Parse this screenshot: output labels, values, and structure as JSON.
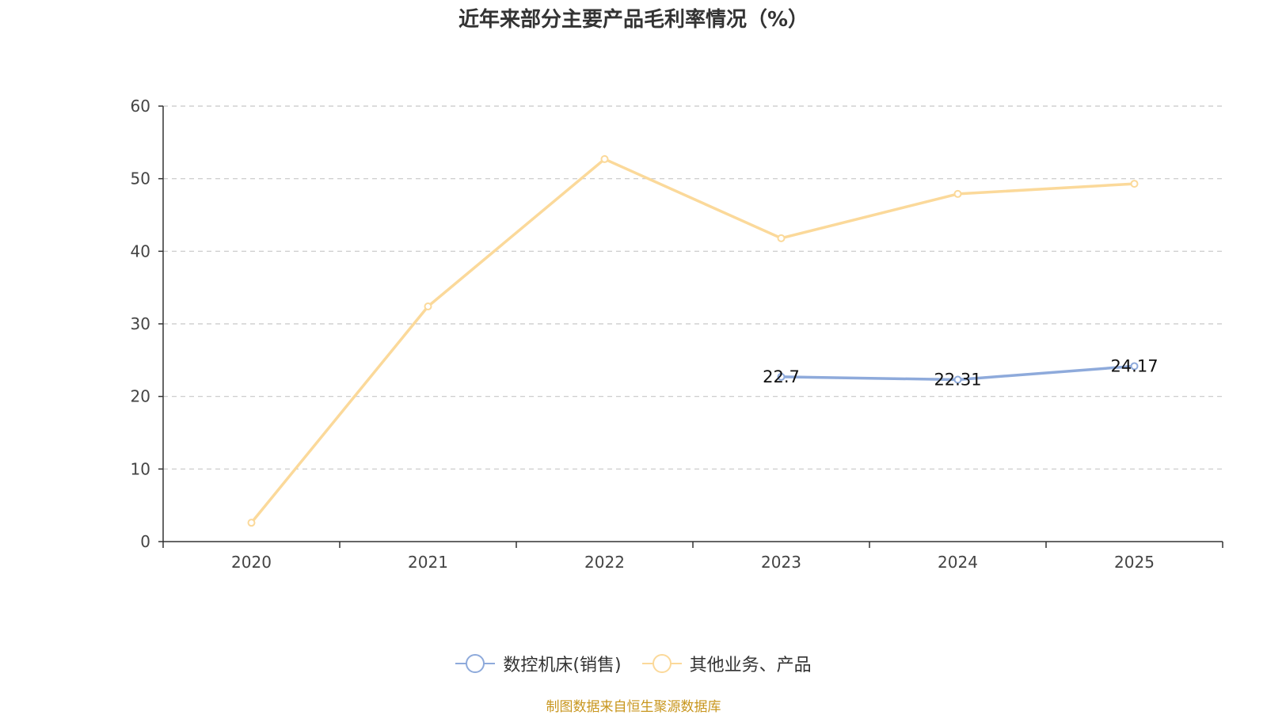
{
  "chart_data": {
    "type": "line",
    "title": "近年来部分主要产品毛利率情况（%）",
    "categories": [
      "2020",
      "2021",
      "2022",
      "2023",
      "2024",
      "2025"
    ],
    "ylim": [
      0,
      60
    ],
    "yticks": [
      0,
      10,
      20,
      30,
      40,
      50,
      60
    ],
    "ytick_labels": [
      "0",
      "10",
      "20",
      "30",
      "40",
      "50",
      "60"
    ],
    "grid": true,
    "legend_position": "bottom",
    "series": [
      {
        "name": "数控机床(销售)",
        "color": "#8eaadb",
        "values": [
          null,
          null,
          null,
          22.7,
          22.31,
          24.17
        ],
        "labels": [
          "",
          "",
          "",
          "22.7",
          "22.31",
          "24.17"
        ]
      },
      {
        "name": "其他业务、产品",
        "color": "#fbd99a",
        "values": [
          2.6,
          32.4,
          52.7,
          41.8,
          47.9,
          49.3
        ],
        "labels": [
          "",
          "",
          "",
          "",
          "",
          ""
        ]
      }
    ]
  },
  "source_note": "制图数据来自恒生聚源数据库"
}
